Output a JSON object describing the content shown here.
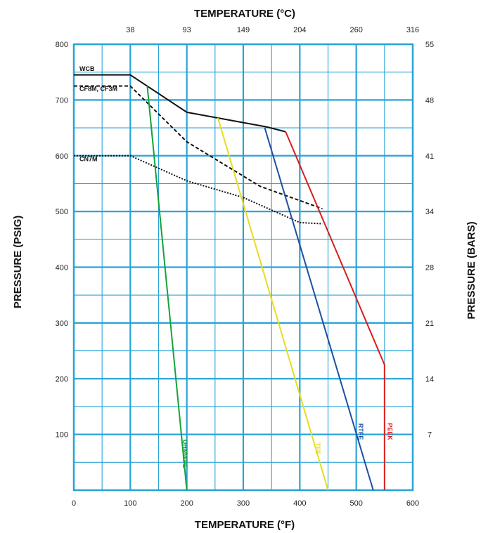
{
  "chart_data": {
    "type": "line",
    "title": "",
    "xlabel_bottom": "TEMPERATURE (°F)",
    "xlabel_top": "TEMPERATURE (°C)",
    "ylabel_left": "PRESSURE (PSIG)",
    "ylabel_right": "PRESSURE (BARS)",
    "xlim": [
      0,
      600
    ],
    "ylim": [
      0,
      800
    ],
    "grid": true,
    "grid_color": "#2aa3d6",
    "bottom_ticks": [
      "0",
      "100",
      "200",
      "300",
      "400",
      "500",
      "600"
    ],
    "bottom_tick_values": [
      0,
      100,
      200,
      300,
      400,
      500,
      600
    ],
    "top_ticks": [
      "38",
      "93",
      "149",
      "204",
      "260",
      "316"
    ],
    "top_tick_values": [
      100,
      200,
      300,
      400,
      500,
      600
    ],
    "left_ticks": [
      "100",
      "200",
      "300",
      "400",
      "500",
      "600",
      "700",
      "800"
    ],
    "left_tick_values": [
      100,
      200,
      300,
      400,
      500,
      600,
      700,
      800
    ],
    "right_ticks": [
      "7",
      "14",
      "21",
      "28",
      "34",
      "41",
      "48",
      "55"
    ],
    "right_tick_values": [
      100,
      200,
      300,
      400,
      500,
      600,
      700,
      800
    ],
    "series": [
      {
        "name": "WCB",
        "color": "#111111",
        "dash": "solid",
        "label_side": "above",
        "x": [
          0,
          100,
          200,
          340,
          375
        ],
        "y": [
          745,
          745,
          678,
          652,
          643
        ],
        "label_at": [
          10,
          752
        ],
        "label_rotate": 0
      },
      {
        "name": "CF8M, CF3M",
        "color": "#111111",
        "dash": "dashed",
        "label_side": "below",
        "x": [
          0,
          100,
          200,
          330,
          440
        ],
        "y": [
          725,
          725,
          625,
          545,
          505
        ],
        "label_at": [
          10,
          716
        ],
        "label_rotate": 0
      },
      {
        "name": "CN7M",
        "color": "#111111",
        "dash": "dotted",
        "label_side": "below",
        "x": [
          0,
          100,
          200,
          300,
          400,
          440
        ],
        "y": [
          600,
          600,
          555,
          525,
          480,
          478
        ],
        "label_at": [
          10,
          590
        ],
        "label_rotate": 0
      },
      {
        "name": "UHMWPE",
        "color": "#14a33a",
        "dash": "solid",
        "x": [
          130,
          200
        ],
        "y": [
          725,
          0
        ],
        "label_at": [
          193,
          65
        ],
        "label_rotate": 90
      },
      {
        "name": "TFE",
        "color": "#e8dc1f",
        "dash": "solid",
        "x": [
          255,
          450
        ],
        "y": [
          668,
          0
        ],
        "label_at": [
          428,
          75
        ],
        "label_rotate": 90
      },
      {
        "name": "RTFE",
        "color": "#1c4fa0",
        "dash": "solid",
        "x": [
          338,
          530
        ],
        "y": [
          650,
          0
        ],
        "label_at": [
          504,
          105
        ],
        "label_rotate": 90
      },
      {
        "name": "PEEK",
        "color": "#d81e1e",
        "dash": "solid",
        "x": [
          375,
          550,
          550
        ],
        "y": [
          643,
          225,
          0
        ],
        "label_at": [
          556,
          105
        ],
        "label_rotate": 90
      }
    ]
  }
}
